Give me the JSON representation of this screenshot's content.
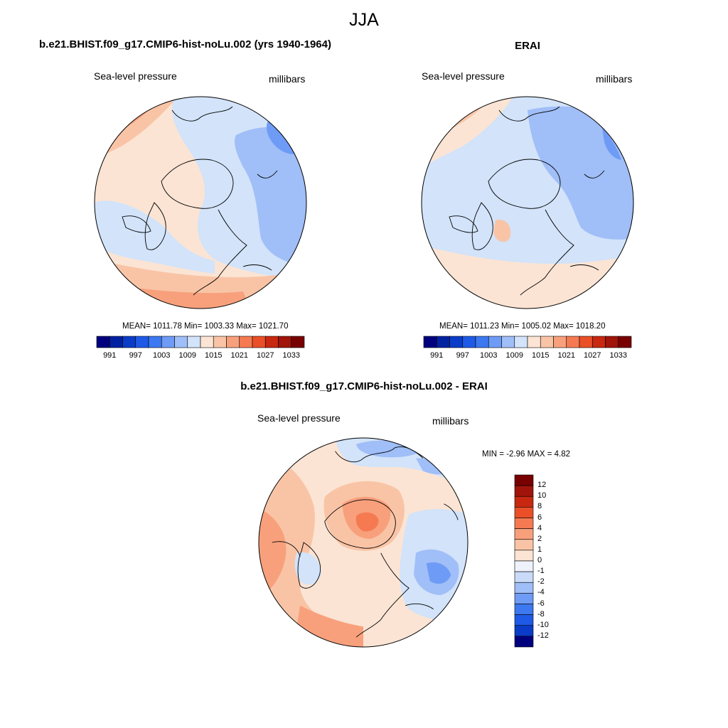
{
  "figure": {
    "title": "JJA"
  },
  "panels": [
    {
      "title": "b.e21.BHIST.f09_g17.CMIP6-hist-noLu.002 (yrs 1940-1964)",
      "left_label": "Sea-level pressure",
      "right_label": "millibars",
      "stats": "MEAN= 1011.78  Min= 1003.33  Max= 1021.70"
    },
    {
      "title": "ERAI",
      "left_label": "Sea-level pressure",
      "right_label": "millibars",
      "stats": "MEAN= 1011.23  Min= 1005.02  Max= 1018.20"
    },
    {
      "title": "b.e21.BHIST.f09_g17.CMIP6-hist-noLu.002 - ERAI",
      "left_label": "Sea-level pressure",
      "right_label": "millibars",
      "stats": "MIN =  -2.96 MAX =   4.82"
    }
  ],
  "colorbar_abs": {
    "tick_labels": [
      "991",
      "997",
      "1003",
      "1009",
      "1015",
      "1021",
      "1027",
      "1033"
    ],
    "colors": [
      "#00007f",
      "#0022a0",
      "#0a3cc8",
      "#1e5ae6",
      "#3c78f0",
      "#6e9bf5",
      "#a0bef7",
      "#d2e3fa",
      "#fbe4d4",
      "#f9c4a6",
      "#f8a07c",
      "#f57a52",
      "#ea4f28",
      "#c8280f",
      "#a0140a",
      "#780000"
    ]
  },
  "colorbar_diff": {
    "tick_labels": [
      "12",
      "10",
      "8",
      "6",
      "4",
      "2",
      "1",
      "0",
      "-1",
      "-2",
      "-4",
      "-6",
      "-8",
      "-10",
      "-12"
    ],
    "colors": [
      "#780000",
      "#a0140a",
      "#c8280f",
      "#ea4f28",
      "#f57a52",
      "#f8a07c",
      "#f9c4a6",
      "#fbe4d4",
      "#eef3fb",
      "#c9dbf8",
      "#a0bef7",
      "#6e9bf5",
      "#3c78f0",
      "#1e5ae6",
      "#0a3cc8",
      "#00007f"
    ]
  },
  "map_colors": {
    "ocean_neg1": "#d2e3fa",
    "neg2": "#a0bef7",
    "neg3": "#6e9bf5",
    "pos1": "#fbe4d4",
    "pos2": "#f9c4a6",
    "pos3": "#f8a07c",
    "pos4": "#f57a52",
    "diff_zero": "#eef3fb"
  }
}
